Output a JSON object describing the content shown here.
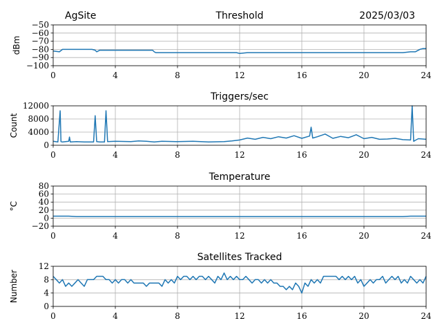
{
  "header": {
    "site": "AgSite",
    "date": "2025/03/03"
  },
  "colors": {
    "line": "#1f77b4"
  },
  "chart_data": [
    {
      "type": "line",
      "title": "Threshold",
      "ylabel": "dBm",
      "xlim": [
        0,
        24
      ],
      "ylim": [
        -100,
        -50
      ],
      "xticks": [
        0,
        4,
        8,
        12,
        16,
        20,
        24
      ],
      "yticks": [
        -100,
        -90,
        -80,
        -70,
        -60,
        -50
      ],
      "grid": true,
      "series": [
        {
          "x": [
            0,
            0.4,
            0.6,
            1.0,
            1.5,
            2.0,
            2.5,
            2.7,
            2.8,
            3.0,
            3.5,
            4.0,
            4.5,
            5.0,
            5.5,
            6.0,
            6.4,
            6.5,
            6.6,
            7.0,
            8.0,
            9.0,
            10.0,
            11.0,
            11.8,
            12.0,
            12.5,
            13.0,
            14.0,
            15.0,
            16.0,
            17.0,
            18.0,
            19.0,
            20.0,
            21.0,
            22.0,
            22.5,
            23.0,
            23.3,
            23.6,
            23.8,
            24.0
          ],
          "y": [
            -82,
            -83,
            -80,
            -80,
            -80,
            -80,
            -80,
            -81,
            -83,
            -81,
            -81,
            -81,
            -81,
            -81,
            -81,
            -81,
            -81,
            -83,
            -84,
            -84,
            -84,
            -84,
            -84,
            -84,
            -84,
            -85,
            -84,
            -84,
            -84,
            -84,
            -84,
            -84,
            -84,
            -84,
            -84,
            -84,
            -84,
            -84,
            -83,
            -83,
            -80,
            -79,
            -79
          ]
        }
      ]
    },
    {
      "type": "line",
      "title": "Triggers/sec",
      "ylabel": "Count",
      "xlim": [
        0,
        24
      ],
      "ylim": [
        0,
        12000
      ],
      "xticks": [
        0,
        4,
        8,
        12,
        16,
        20,
        24
      ],
      "yticks": [
        0,
        4000,
        8000,
        12000
      ],
      "grid": true,
      "series": [
        {
          "x": [
            0,
            0.3,
            0.45,
            0.5,
            0.6,
            1.0,
            1.05,
            1.1,
            1.5,
            2.0,
            2.6,
            2.7,
            2.8,
            3.0,
            3.3,
            3.4,
            3.5,
            4.0,
            5.0,
            5.5,
            6.0,
            6.5,
            7.0,
            8.0,
            9.0,
            10.0,
            11.0,
            11.5,
            12.0,
            12.5,
            13.0,
            13.5,
            14.0,
            14.5,
            15.0,
            15.5,
            16.0,
            16.5,
            16.6,
            16.7,
            17.0,
            17.5,
            18.0,
            18.5,
            19.0,
            19.5,
            20.0,
            20.5,
            21.0,
            21.5,
            22.0,
            22.5,
            23.0,
            23.1,
            23.2,
            23.3,
            23.5,
            24.0
          ],
          "y": [
            1200,
            1000,
            10500,
            1100,
            1000,
            1200,
            2500,
            1000,
            1100,
            1000,
            1000,
            9000,
            1100,
            1000,
            1000,
            10500,
            1100,
            1200,
            1100,
            1300,
            1200,
            1000,
            1200,
            1100,
            1200,
            1000,
            1100,
            1300,
            1600,
            2200,
            1800,
            2400,
            2000,
            2600,
            2200,
            2900,
            2100,
            2800,
            5500,
            2200,
            2600,
            3400,
            2100,
            2700,
            2300,
            3200,
            2000,
            2400,
            1800,
            1900,
            2100,
            1700,
            1600,
            12000,
            1200,
            1500,
            2000,
            1800
          ]
        }
      ]
    },
    {
      "type": "line",
      "title": "Temperature",
      "ylabel": "°C",
      "xlim": [
        0,
        24
      ],
      "ylim": [
        -20,
        80
      ],
      "xticks": [
        0,
        4,
        8,
        12,
        16,
        20,
        24
      ],
      "yticks": [
        -20,
        0,
        20,
        40,
        60,
        80
      ],
      "grid": true,
      "series": [
        {
          "x": [
            0,
            0.5,
            1.0,
            1.5,
            4.0,
            8.0,
            12.0,
            16.0,
            20.0,
            22.5,
            23.0,
            24.0
          ],
          "y": [
            5,
            5,
            5,
            4,
            4,
            4,
            4,
            4,
            4,
            4,
            5,
            5
          ]
        }
      ]
    },
    {
      "type": "line",
      "title": "Satellites Tracked",
      "ylabel": "Number",
      "xlim": [
        0,
        24
      ],
      "ylim": [
        0,
        12
      ],
      "xticks": [
        0,
        4,
        8,
        12,
        16,
        20,
        24
      ],
      "yticks": [
        0,
        4,
        8,
        12
      ],
      "grid": true,
      "series": [
        {
          "x": [
            0,
            0.2,
            0.4,
            0.6,
            0.8,
            1.0,
            1.2,
            1.4,
            1.6,
            1.8,
            2.0,
            2.2,
            2.4,
            2.6,
            2.8,
            3.0,
            3.2,
            3.4,
            3.6,
            3.8,
            4.0,
            4.2,
            4.4,
            4.6,
            4.8,
            5.0,
            5.2,
            5.4,
            5.6,
            5.8,
            6.0,
            6.2,
            6.4,
            6.6,
            6.8,
            7.0,
            7.2,
            7.4,
            7.6,
            7.8,
            8.0,
            8.2,
            8.4,
            8.6,
            8.8,
            9.0,
            9.2,
            9.4,
            9.6,
            9.8,
            10.0,
            10.2,
            10.4,
            10.6,
            10.8,
            11.0,
            11.2,
            11.4,
            11.6,
            11.8,
            12.0,
            12.2,
            12.4,
            12.6,
            12.8,
            13.0,
            13.2,
            13.4,
            13.6,
            13.8,
            14.0,
            14.2,
            14.4,
            14.6,
            14.8,
            15.0,
            15.2,
            15.4,
            15.6,
            15.8,
            16.0,
            16.2,
            16.4,
            16.6,
            16.8,
            17.0,
            17.2,
            17.4,
            17.6,
            17.8,
            18.0,
            18.2,
            18.4,
            18.6,
            18.8,
            19.0,
            19.2,
            19.4,
            19.6,
            19.8,
            20.0,
            20.2,
            20.4,
            20.6,
            20.8,
            21.0,
            21.2,
            21.4,
            21.6,
            21.8,
            22.0,
            22.2,
            22.4,
            22.6,
            22.8,
            23.0,
            23.2,
            23.4,
            23.6,
            23.8,
            24.0
          ],
          "y": [
            9,
            8,
            7,
            8,
            6,
            7,
            6,
            7,
            8,
            7,
            6,
            8,
            8,
            8,
            9,
            9,
            9,
            8,
            8,
            7,
            8,
            7,
            8,
            8,
            7,
            8,
            7,
            7,
            7,
            7,
            6,
            7,
            7,
            7,
            7,
            6,
            8,
            7,
            8,
            7,
            9,
            8,
            9,
            9,
            8,
            9,
            8,
            9,
            9,
            8,
            9,
            8,
            7,
            9,
            8,
            10,
            8,
            9,
            8,
            9,
            8,
            8,
            9,
            8,
            7,
            8,
            8,
            7,
            8,
            7,
            8,
            7,
            7,
            6,
            6,
            5,
            6,
            5,
            7,
            6,
            4,
            7,
            6,
            8,
            7,
            8,
            7,
            9,
            9,
            9,
            9,
            9,
            8,
            9,
            8,
            9,
            8,
            9,
            7,
            8,
            6,
            7,
            8,
            7,
            8,
            8,
            9,
            7,
            8,
            9,
            8,
            9,
            7,
            8,
            7,
            9,
            8,
            7,
            8,
            7,
            9
          ]
        }
      ]
    }
  ]
}
